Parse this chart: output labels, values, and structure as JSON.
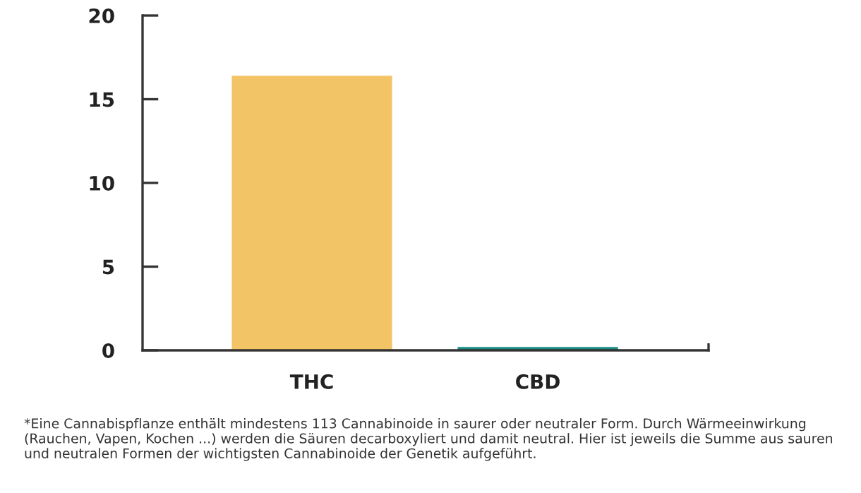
{
  "chart_data": {
    "type": "bar",
    "categories": [
      "THC",
      "CBD"
    ],
    "values": [
      16.4,
      0.2
    ],
    "colors": [
      "#f3c466",
      "#1a8f84"
    ],
    "ylim": [
      0,
      20
    ],
    "yticks": [
      0,
      5,
      10,
      15,
      20
    ],
    "grid": false,
    "legend": false,
    "annotations": [
      "*Eine Cannabispflanze enthält mindestens 113 Cannabinoide in saurer oder neutraler Form. Durch Wärmeeinwirkung (Rauchen, Vapen, Kochen ...) werden die Säuren decarboxyliert und damit neutral. Hier ist jeweils die Summe aus sauren und neutralen Formen der wichtigsten Cannabinoide der Genetik aufgeführt."
    ]
  }
}
